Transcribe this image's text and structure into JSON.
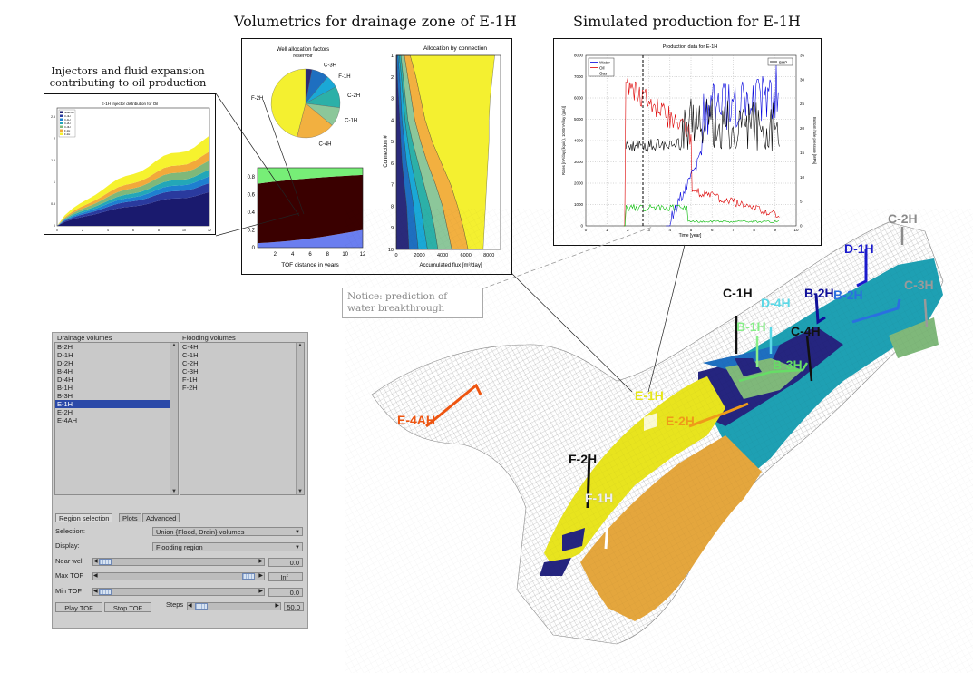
{
  "titles": {
    "injectors": "Injectors and fluid expansion contributing to oil production",
    "injectors_line1": "Injectors and fluid expansion",
    "injectors_line2": "contributing to oil production",
    "volumetrics": "Volumetrics for drainage zone of E-1H",
    "simulated": "Simulated production for E-1H"
  },
  "notice": {
    "line1": "Notice: prediction of",
    "line2": "water breakthrough"
  },
  "mini_injector_chart": {
    "title": "E-1H Injector distribution for Oil",
    "legend": [
      "reservoir",
      "C-4H",
      "C-1H",
      "C-2H",
      "C-3H",
      "F-1H",
      "F-2H"
    ],
    "colors": [
      "#1a1a6e",
      "#2a3a9e",
      "#1e7fd0",
      "#23a7b8",
      "#7fb87a",
      "#f2a93b",
      "#f6f22e"
    ],
    "xticks": [
      "0",
      "2",
      "4",
      "6",
      "8",
      "10",
      "12"
    ],
    "yticks": [
      "0",
      "0.5",
      "1",
      "1.5",
      "2",
      "2.5"
    ]
  },
  "pie_chart": {
    "title": "Well allocation factors",
    "labels": [
      "reservoir",
      "C-3H",
      "F-1H",
      "C-2H",
      "C-1H",
      "C-4H",
      "F-2H"
    ],
    "values": [
      3,
      8,
      6,
      10,
      9,
      18,
      46
    ],
    "colors": [
      "#2a2a7a",
      "#1e6fc0",
      "#1aa8d6",
      "#2cb0a8",
      "#8cc79a",
      "#f2b040",
      "#f4f030"
    ]
  },
  "tof_chart": {
    "xlabel": "TOF distance in years",
    "xticks": [
      "2",
      "4",
      "6",
      "8",
      "10",
      "12"
    ],
    "yticks": [
      "0",
      "0.2",
      "0.4",
      "0.6",
      "0.8"
    ],
    "colors": [
      "#6a7ef0",
      "#3a0000",
      "#77ee77"
    ]
  },
  "allocation_chart": {
    "title": "Allocation by connection",
    "ylabel": "Connection #",
    "xlabel": "Accumulated flux [m³/day]",
    "xticks": [
      "0",
      "2000",
      "4000",
      "6000",
      "8000"
    ],
    "yticks": [
      "1",
      "2",
      "3",
      "4",
      "5",
      "6",
      "7",
      "8",
      "9",
      "10"
    ],
    "colors": [
      "#2a2a7a",
      "#1e6fc0",
      "#1aa8d6",
      "#2cb0a8",
      "#8cc79a",
      "#f2b040",
      "#f4f030"
    ]
  },
  "production_chart": {
    "title": "Production data for E-1H",
    "xlabel": "Time [year]",
    "ylabel_left": "Rates [m³/day (liquid), 1000m³/day (gas)]",
    "ylabel_right": "Bottom hole pressure [MPa]",
    "legend": [
      "Water",
      "Oil",
      "Gas"
    ],
    "legend_right": "BHP",
    "series_colors": {
      "water": "#0000dd",
      "oil": "#dd0000",
      "gas": "#00bb00",
      "bhp": "#000000"
    },
    "xticks": [
      "0",
      "1",
      "2",
      "3",
      "4",
      "5",
      "6",
      "7",
      "8",
      "9",
      "10"
    ],
    "yticks_left": [
      "0",
      "1000",
      "2000",
      "3000",
      "4000",
      "5000",
      "6000",
      "7000",
      "8000"
    ],
    "yticks_right": [
      "0",
      "5",
      "10",
      "15",
      "20",
      "25",
      "30",
      "35"
    ]
  },
  "gui": {
    "drainage_label": "Drainage volumes",
    "flooding_label": "Flooding volumes",
    "drainage_items": [
      "B-2H",
      "D-1H",
      "D-2H",
      "B-4H",
      "D-4H",
      "B-1H",
      "B-3H",
      "E-1H",
      "E-2H",
      "E-4AH"
    ],
    "drainage_selected_index": 7,
    "flooding_items": [
      "C-4H",
      "C-1H",
      "C-2H",
      "C-3H",
      "F-1H",
      "F-2H"
    ],
    "tabs": [
      "Region selection",
      "Plots",
      "Advanced"
    ],
    "selection_label": "Selection:",
    "selection_value": "Union {Flood, Drain} volumes",
    "display_label": "Display:",
    "display_value": "Flooding region",
    "near_well_label": "Near well",
    "near_well_value": "0.0",
    "max_tof_label": "Max TOF",
    "max_tof_value": "Inf",
    "min_tof_label": "Min TOF",
    "min_tof_value": "0.0",
    "play_label": "Play TOF",
    "stop_label": "Stop TOF",
    "steps_label": "Steps",
    "steps_value": "50.0"
  },
  "wells": [
    {
      "name": "C-2H",
      "color": "#8a8a8a"
    },
    {
      "name": "D-1H",
      "color": "#1a1acc"
    },
    {
      "name": "C-1H",
      "color": "#111111"
    },
    {
      "name": "D-4H",
      "color": "#5ad8e6"
    },
    {
      "name": "B-2H",
      "color": "#10109a"
    },
    {
      "name": "B-2H",
      "color": "#2a6fe0"
    },
    {
      "name": "C-3H",
      "color": "#9a9a9a"
    },
    {
      "name": "B-1H",
      "color": "#88ee88"
    },
    {
      "name": "C-4H",
      "color": "#111111"
    },
    {
      "name": "B-3H",
      "color": "#66dd66"
    },
    {
      "name": "E-1H",
      "color": "#e6e61a"
    },
    {
      "name": "E-4AH",
      "color": "#ee5511"
    },
    {
      "name": "E-2H",
      "color": "#ee9a1a"
    },
    {
      "name": "F-2H",
      "color": "#111111"
    },
    {
      "name": "F-1H",
      "color": "#f0f0f0"
    }
  ]
}
